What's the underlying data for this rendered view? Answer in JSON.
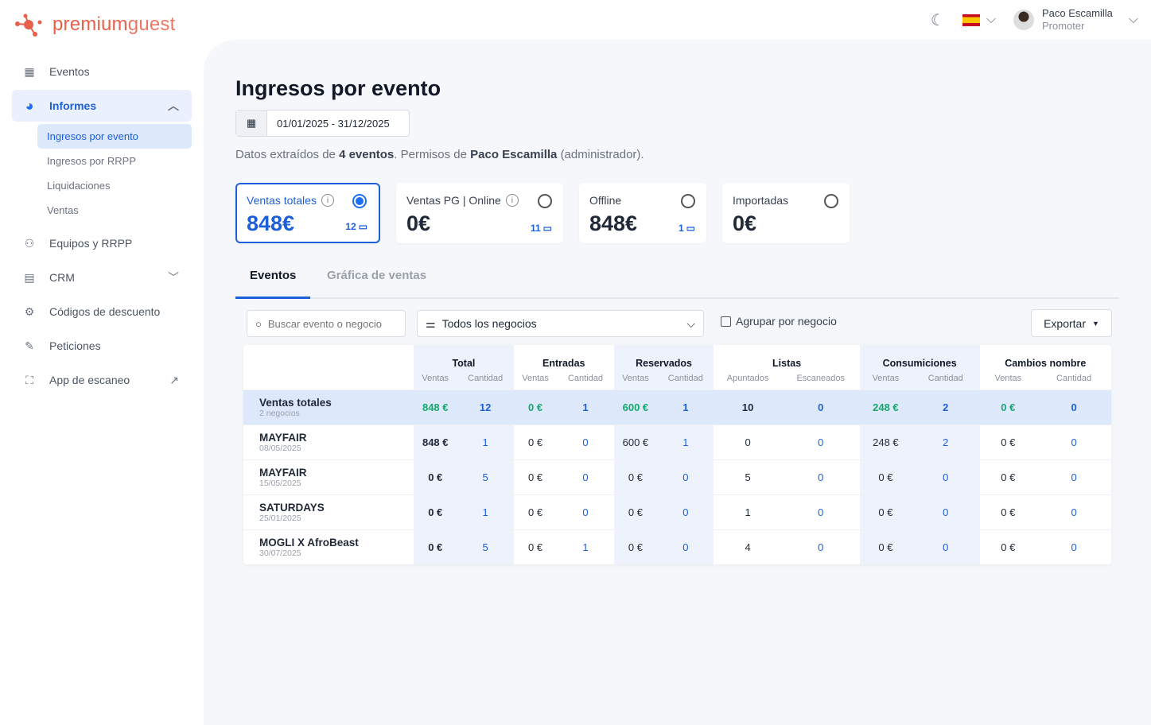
{
  "brand": {
    "name_bold": "premium",
    "name_light": "guest",
    "color": "#e8604c"
  },
  "user": {
    "name": "Paco Escamilla",
    "role": "Promoter"
  },
  "sidebar": {
    "items": [
      {
        "label": "Eventos",
        "icon": "calendar-icon"
      },
      {
        "label": "Informes",
        "icon": "pie-chart-icon"
      },
      {
        "label": "Equipos y RRPP",
        "icon": "users-icon"
      },
      {
        "label": "CRM",
        "icon": "contacts-icon"
      },
      {
        "label": "Códigos de descuento",
        "icon": "discount-icon"
      },
      {
        "label": "Peticiones",
        "icon": "edit-icon"
      },
      {
        "label": "App de escaneo",
        "icon": "scan-icon"
      }
    ],
    "subitems": [
      "Ingresos por evento",
      "Ingresos por RRPP",
      "Liquidaciones",
      "Ventas"
    ]
  },
  "page": {
    "title": "Ingresos por evento",
    "date_range": "01/01/2025 - 31/12/2025",
    "info": {
      "pre": "Datos extraídos de",
      "events": "4 eventos",
      "mid": ". Permisos de",
      "user": "Paco Escamilla",
      "post": "(administrador)."
    }
  },
  "cards": [
    {
      "label": "Ventas totales",
      "value": "848€",
      "count": "12",
      "selected": true
    },
    {
      "label": "Ventas PG | Online",
      "value": "0€",
      "count": "11"
    },
    {
      "label": "Offline",
      "value": "848€",
      "count": "1"
    },
    {
      "label": "Importadas",
      "value": "0€"
    }
  ],
  "tabs": [
    "Eventos",
    "Gráfica de ventas"
  ],
  "filters": {
    "search_placeholder": "Buscar evento o negocio",
    "business": "Todos los negocios",
    "group_label": "Agrupar por negocio",
    "export": "Exportar"
  },
  "table": {
    "groups": [
      "Total",
      "Entradas",
      "Reservados",
      "Listas",
      "Consumiciones",
      "Cambios nombre"
    ],
    "subheaders": [
      [
        "Ventas",
        "Cantidad"
      ],
      [
        "Ventas",
        "Cantidad"
      ],
      [
        "Ventas",
        "Cantidad"
      ],
      [
        "Apuntados",
        "Escaneados"
      ],
      [
        "Ventas",
        "Cantidad"
      ],
      [
        "Ventas",
        "Cantidad"
      ]
    ],
    "total": {
      "name": "Ventas totales",
      "sub": "2 negocios",
      "cells": [
        "848 €",
        "12",
        "0 €",
        "1",
        "600 €",
        "1",
        "10",
        "0",
        "248 €",
        "2",
        "0 €",
        "0"
      ]
    },
    "rows": [
      {
        "name": "MAYFAIR",
        "date": "08/05/2025",
        "cells": [
          "848 €",
          "1",
          "0 €",
          "0",
          "600 €",
          "1",
          "0",
          "0",
          "248 €",
          "2",
          "0 €",
          "0"
        ]
      },
      {
        "name": "MAYFAIR",
        "date": "15/05/2025",
        "cells": [
          "0 €",
          "5",
          "0 €",
          "0",
          "0 €",
          "0",
          "5",
          "0",
          "0 €",
          "0",
          "0 €",
          "0"
        ]
      },
      {
        "name": "SATURDAYS",
        "date": "25/01/2025",
        "cells": [
          "0 €",
          "1",
          "0 €",
          "0",
          "0 €",
          "0",
          "1",
          "0",
          "0 €",
          "0",
          "0 €",
          "0"
        ]
      },
      {
        "name": "MOGLI X AfroBeast",
        "date": "30/07/2025",
        "cells": [
          "0 €",
          "5",
          "0 €",
          "1",
          "0 €",
          "0",
          "4",
          "0",
          "0 €",
          "0",
          "0 €",
          "0"
        ]
      }
    ]
  }
}
